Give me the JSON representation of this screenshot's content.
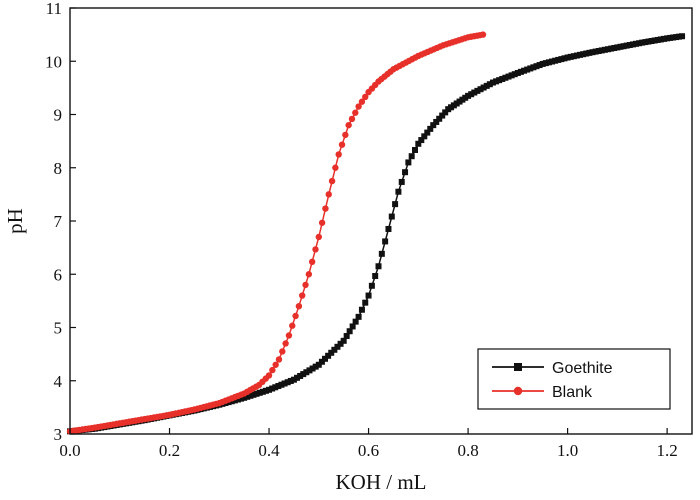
{
  "chart_data": {
    "type": "line",
    "title": "",
    "xlabel": "KOH / mL",
    "ylabel": "pH",
    "xlim": [
      0.0,
      1.25
    ],
    "ylim": [
      3,
      11
    ],
    "xticks": [
      "0.0",
      "0.2",
      "0.4",
      "0.6",
      "0.8",
      "1.0",
      "1.2"
    ],
    "xtick_values": [
      0.0,
      0.2,
      0.4,
      0.6,
      0.8,
      1.0,
      1.2
    ],
    "yticks": [
      "3",
      "4",
      "5",
      "6",
      "7",
      "8",
      "9",
      "10",
      "11"
    ],
    "ytick_values": [
      3,
      4,
      5,
      6,
      7,
      8,
      9,
      10,
      11
    ],
    "grid": false,
    "legend_position": "bottom-right",
    "series": [
      {
        "name": "Goethite",
        "color": "#111111",
        "marker": "square",
        "x": [
          0.0,
          0.05,
          0.1,
          0.15,
          0.2,
          0.25,
          0.3,
          0.35,
          0.4,
          0.45,
          0.5,
          0.55,
          0.58,
          0.6,
          0.62,
          0.64,
          0.66,
          0.68,
          0.7,
          0.73,
          0.76,
          0.8,
          0.85,
          0.9,
          0.95,
          1.0,
          1.05,
          1.1,
          1.15,
          1.2,
          1.23
        ],
        "y": [
          3.05,
          3.1,
          3.18,
          3.26,
          3.35,
          3.44,
          3.55,
          3.68,
          3.83,
          4.02,
          4.3,
          4.75,
          5.2,
          5.6,
          6.15,
          6.85,
          7.55,
          8.1,
          8.45,
          8.8,
          9.1,
          9.35,
          9.6,
          9.78,
          9.95,
          10.07,
          10.17,
          10.26,
          10.35,
          10.43,
          10.47
        ]
      },
      {
        "name": "Blank",
        "color": "#e8302a",
        "marker": "circle",
        "x": [
          0.0,
          0.05,
          0.1,
          0.15,
          0.2,
          0.25,
          0.3,
          0.35,
          0.38,
          0.4,
          0.42,
          0.44,
          0.46,
          0.48,
          0.5,
          0.52,
          0.54,
          0.56,
          0.58,
          0.6,
          0.62,
          0.65,
          0.7,
          0.75,
          0.8,
          0.83
        ],
        "y": [
          3.05,
          3.12,
          3.2,
          3.28,
          3.36,
          3.46,
          3.58,
          3.76,
          3.92,
          4.1,
          4.4,
          4.85,
          5.4,
          6.0,
          6.7,
          7.5,
          8.25,
          8.8,
          9.15,
          9.42,
          9.62,
          9.85,
          10.1,
          10.3,
          10.45,
          10.5
        ]
      }
    ]
  }
}
